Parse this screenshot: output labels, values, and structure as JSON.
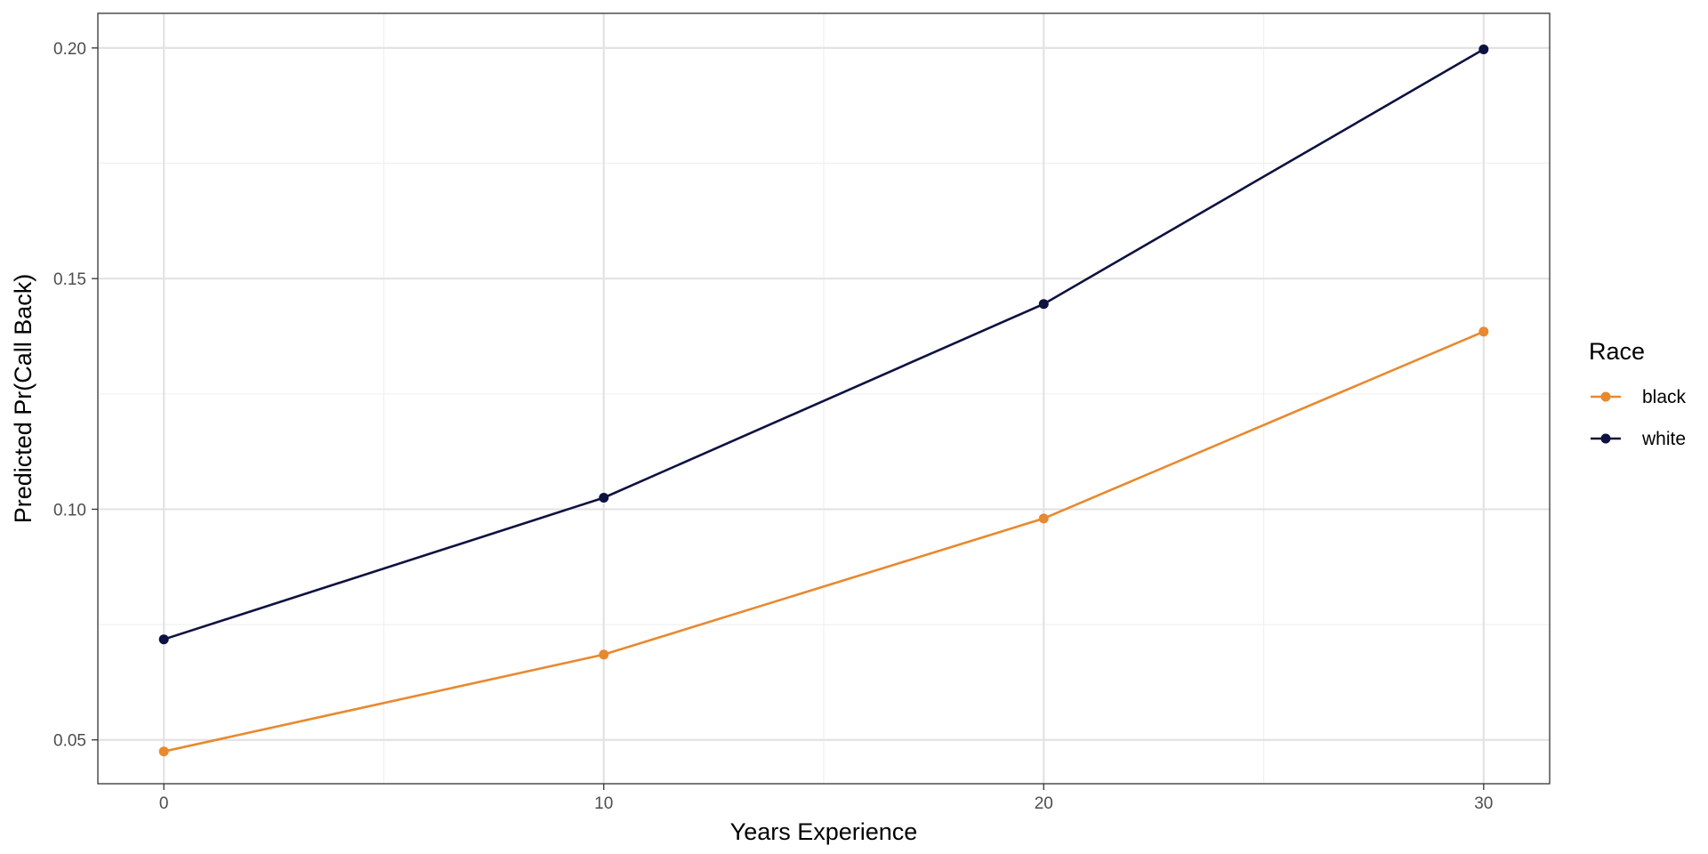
{
  "chart_data": {
    "type": "line",
    "title": "",
    "xlabel": "Years Experience",
    "ylabel": "Predicted Pr(Call Back)",
    "x": [
      0,
      10,
      20,
      30
    ],
    "xticks": [
      "0",
      "10",
      "20",
      "30"
    ],
    "yticks": [
      "0.05",
      "0.10",
      "0.15",
      "0.20"
    ],
    "xlim": [
      -1.5,
      31.5
    ],
    "ylim": [
      0.0405,
      0.2075
    ],
    "grid": true,
    "legend": {
      "title": "Race",
      "placement": "right"
    },
    "series": [
      {
        "name": "black",
        "color": "#E8892F",
        "values": [
          0.0475,
          0.0685,
          0.098,
          0.1385
        ]
      },
      {
        "name": "white",
        "color": "#0D1240",
        "values": [
          0.0718,
          0.1025,
          0.1445,
          0.1997
        ]
      }
    ]
  }
}
